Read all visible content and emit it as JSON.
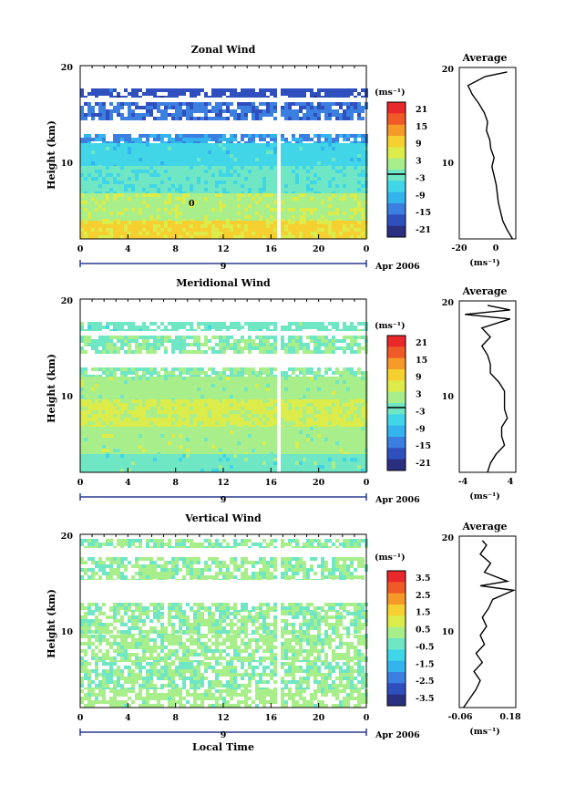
{
  "colors": {
    "scale": [
      "#2b2f80",
      "#2f4fbf",
      "#3b7fe0",
      "#33b4ee",
      "#40d6e8",
      "#6fe6c4",
      "#a8ee8a",
      "#dcec4a",
      "#f5d030",
      "#f59a28",
      "#f05a26",
      "#e8282a"
    ]
  },
  "panels": [
    {
      "id": "zonal",
      "title": "Zonal Wind",
      "ylabel": "Height (km)",
      "yticks": [
        "20",
        "10"
      ],
      "xticks": [
        "0",
        "4",
        "8",
        "12",
        "16",
        "20",
        "0"
      ],
      "day_label": "9",
      "date_label": "Apr 2006",
      "colorbar_unit": "(ms⁻¹)",
      "colorbar_ticks": [
        "21",
        "15",
        "9",
        "3",
        "-3",
        "-9",
        "-15",
        "-21"
      ],
      "contour_label": "0",
      "avg_title": "Average",
      "avg_yticks": [
        "20",
        "10"
      ],
      "avg_xticks": [
        "-20",
        "0"
      ],
      "avg_xlabel": "(ms⁻¹)"
    },
    {
      "id": "meridional",
      "title": "Meridional Wind",
      "ylabel": "Height (km)",
      "yticks": [
        "20",
        "10"
      ],
      "xticks": [
        "0",
        "4",
        "8",
        "12",
        "16",
        "20",
        "0"
      ],
      "day_label": "9",
      "date_label": "Apr 2006",
      "colorbar_unit": "(ms⁻¹)",
      "colorbar_ticks": [
        "21",
        "15",
        "9",
        "3",
        "-3",
        "-9",
        "-15",
        "-21"
      ],
      "avg_title": "Average",
      "avg_yticks": [
        "20",
        "10"
      ],
      "avg_xticks": [
        "-4",
        "4"
      ],
      "avg_xlabel": "(ms⁻¹)"
    },
    {
      "id": "vertical",
      "title": "Vertical Wind",
      "ylabel": "Height (km)",
      "yticks": [
        "20",
        "10"
      ],
      "xticks": [
        "0",
        "4",
        "8",
        "12",
        "16",
        "20",
        "0"
      ],
      "day_label": "9",
      "date_label": "Apr 2006",
      "xlabel": "Local Time",
      "colorbar_unit": "(ms⁻¹)",
      "colorbar_ticks": [
        "3.5",
        "2.5",
        "1.5",
        "0.5",
        "-0.5",
        "-1.5",
        "-2.5",
        "-3.5"
      ],
      "avg_title": "Average",
      "avg_yticks": [
        "20",
        "10"
      ],
      "avg_xticks": [
        "-0.06",
        "0.18"
      ],
      "avg_xlabel": "(ms⁻¹)"
    }
  ],
  "chart_data": [
    {
      "type": "heatmap",
      "title": "Zonal Wind",
      "xlabel": "",
      "ylabel": "Height (km)",
      "xlim": [
        0,
        24
      ],
      "ylim": [
        1,
        20
      ],
      "x_units": "hours local time, 9 Apr 2006",
      "color_range": [
        -24,
        24
      ],
      "missing_columns_hours": [
        [
          16.3,
          16.7
        ]
      ],
      "layers": [
        {
          "z": [
            1,
            3
          ],
          "value": 9
        },
        {
          "z": [
            3,
            6
          ],
          "value": 3
        },
        {
          "z": [
            6,
            9
          ],
          "value": -3
        },
        {
          "z": [
            9,
            11.5
          ],
          "value": -6
        },
        {
          "z": [
            11.5,
            12.5
          ],
          "value": -12
        },
        {
          "z": [
            14,
            16
          ],
          "value": -15
        },
        {
          "z": [
            16.5,
            17.5
          ],
          "value": -18
        }
      ],
      "average_profile": {
        "title": "Average",
        "xlim": [
          -20,
          6
        ],
        "z": [
          1,
          2,
          3,
          4,
          5,
          6,
          7,
          8,
          9,
          10,
          11,
          12,
          13,
          14,
          15,
          16,
          17,
          18,
          19,
          19.5
        ],
        "u": [
          4.5,
          2,
          0,
          -1,
          -2,
          -2.5,
          -3,
          -4,
          -5,
          -4,
          -5.5,
          -6,
          -7.5,
          -7,
          -8.5,
          -11,
          -14,
          -16,
          -8,
          2
        ]
      }
    },
    {
      "type": "heatmap",
      "title": "Meridional Wind",
      "xlabel": "",
      "ylabel": "Height (km)",
      "xlim": [
        0,
        24
      ],
      "ylim": [
        1,
        20
      ],
      "x_units": "hours local time, 9 Apr 2006",
      "color_range": [
        -24,
        24
      ],
      "missing_columns_hours": [
        [
          16.3,
          16.7
        ]
      ],
      "layers": [
        {
          "z": [
            1,
            3
          ],
          "value": -2
        },
        {
          "z": [
            3,
            6
          ],
          "value": 2
        },
        {
          "z": [
            6,
            9
          ],
          "value": 5
        },
        {
          "z": [
            9,
            11.5
          ],
          "value": 2
        },
        {
          "z": [
            11.5,
            12.5
          ],
          "value": 0
        },
        {
          "z": [
            14,
            16
          ],
          "value": 0
        },
        {
          "z": [
            16.5,
            17.5
          ],
          "value": -2
        }
      ],
      "average_profile": {
        "title": "Average",
        "xlim": [
          -5,
          5
        ],
        "z": [
          1,
          2,
          3,
          4,
          5,
          6,
          7,
          8,
          9,
          10,
          11,
          12,
          13,
          14,
          15,
          16,
          17,
          18,
          18.5,
          19,
          19.5
        ],
        "v": [
          0,
          0.5,
          1.5,
          3,
          2.5,
          2.5,
          3.5,
          3,
          3,
          3,
          2,
          0.5,
          0.5,
          0,
          -1,
          0.5,
          -1,
          4,
          -4,
          4,
          0
        ]
      }
    },
    {
      "type": "heatmap",
      "title": "Vertical Wind",
      "xlabel": "Local Time",
      "ylabel": "Height (km)",
      "xlim": [
        0,
        24
      ],
      "ylim": [
        1,
        20
      ],
      "x_units": "hours local time, 9 Apr 2006",
      "color_range": [
        -4,
        4
      ],
      "missing_columns_hours": [
        [
          16.3,
          16.7
        ]
      ],
      "layers": [
        {
          "z": [
            1,
            3
          ],
          "value": 0.3
        },
        {
          "z": [
            3,
            6
          ],
          "value": 0
        },
        {
          "z": [
            6,
            9
          ],
          "value": 0.2
        },
        {
          "z": [
            9,
            11.5
          ],
          "value": 0.1
        },
        {
          "z": [
            11.5,
            12.5
          ],
          "value": 0
        },
        {
          "z": [
            15,
            17.5
          ],
          "value": 0.1
        },
        {
          "z": [
            18.5,
            19.5
          ],
          "value": 0
        }
      ],
      "average_profile": {
        "title": "Average",
        "xlim": [
          -0.08,
          0.19
        ],
        "z": [
          1,
          2,
          3,
          4,
          5,
          6,
          7,
          8,
          9,
          10,
          11,
          12,
          13,
          14,
          14.5,
          15,
          16,
          17,
          18,
          19,
          19.5
        ],
        "w": [
          -0.06,
          -0.03,
          0,
          0.02,
          -0.01,
          0.03,
          0,
          0.04,
          0.02,
          0.05,
          0.03,
          0.06,
          0.08,
          0.18,
          0.02,
          0.15,
          0.04,
          0.07,
          0.02,
          0.05,
          0.03
        ]
      }
    }
  ]
}
